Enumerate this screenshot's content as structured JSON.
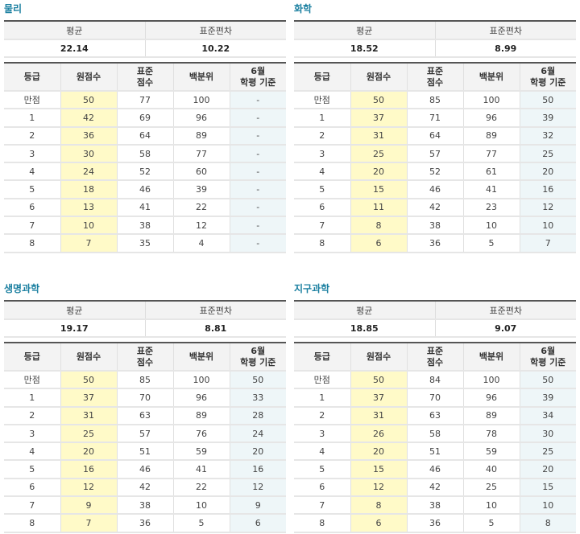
{
  "labels": {
    "mean": "평균",
    "sd": "표준편차",
    "grade": "등급",
    "raw": "원점수",
    "std_l1": "표준",
    "std_l2": "점수",
    "pct": "백분위",
    "june_l1": "6월",
    "june_l2": "학평 기준"
  },
  "colors": {
    "title": "#1a7fa0",
    "raw_bg": "#fffac8",
    "june_bg": "#eef6f8"
  },
  "panels": [
    {
      "title": "물리",
      "mean": "22.14",
      "sd": "10.22",
      "rows": [
        [
          "만점",
          "50",
          "77",
          "100",
          "-"
        ],
        [
          "1",
          "42",
          "69",
          "96",
          "-"
        ],
        [
          "2",
          "36",
          "64",
          "89",
          "-"
        ],
        [
          "3",
          "30",
          "58",
          "77",
          "-"
        ],
        [
          "4",
          "24",
          "52",
          "60",
          "-"
        ],
        [
          "5",
          "18",
          "46",
          "39",
          "-"
        ],
        [
          "6",
          "13",
          "41",
          "22",
          "-"
        ],
        [
          "7",
          "10",
          "38",
          "12",
          "-"
        ],
        [
          "8",
          "7",
          "35",
          "4",
          "-"
        ]
      ]
    },
    {
      "title": "화학",
      "mean": "18.52",
      "sd": "8.99",
      "rows": [
        [
          "만점",
          "50",
          "85",
          "100",
          "50"
        ],
        [
          "1",
          "37",
          "71",
          "96",
          "39"
        ],
        [
          "2",
          "31",
          "64",
          "89",
          "32"
        ],
        [
          "3",
          "25",
          "57",
          "77",
          "25"
        ],
        [
          "4",
          "20",
          "52",
          "61",
          "20"
        ],
        [
          "5",
          "15",
          "46",
          "41",
          "16"
        ],
        [
          "6",
          "11",
          "42",
          "23",
          "12"
        ],
        [
          "7",
          "8",
          "38",
          "10",
          "10"
        ],
        [
          "8",
          "6",
          "36",
          "5",
          "7"
        ]
      ]
    },
    {
      "title": "생명과학",
      "mean": "19.17",
      "sd": "8.81",
      "rows": [
        [
          "만점",
          "50",
          "85",
          "100",
          "50"
        ],
        [
          "1",
          "37",
          "70",
          "96",
          "33"
        ],
        [
          "2",
          "31",
          "63",
          "89",
          "28"
        ],
        [
          "3",
          "25",
          "57",
          "76",
          "24"
        ],
        [
          "4",
          "20",
          "51",
          "59",
          "20"
        ],
        [
          "5",
          "16",
          "46",
          "41",
          "16"
        ],
        [
          "6",
          "12",
          "42",
          "22",
          "12"
        ],
        [
          "7",
          "9",
          "38",
          "10",
          "9"
        ],
        [
          "8",
          "7",
          "36",
          "5",
          "6"
        ]
      ]
    },
    {
      "title": "지구과학",
      "mean": "18.85",
      "sd": "9.07",
      "rows": [
        [
          "만점",
          "50",
          "84",
          "100",
          "50"
        ],
        [
          "1",
          "37",
          "70",
          "96",
          "39"
        ],
        [
          "2",
          "31",
          "63",
          "89",
          "34"
        ],
        [
          "3",
          "26",
          "58",
          "78",
          "30"
        ],
        [
          "4",
          "20",
          "51",
          "59",
          "25"
        ],
        [
          "5",
          "15",
          "46",
          "40",
          "20"
        ],
        [
          "6",
          "12",
          "42",
          "25",
          "15"
        ],
        [
          "7",
          "8",
          "38",
          "10",
          "10"
        ],
        [
          "8",
          "6",
          "36",
          "5",
          "8"
        ]
      ]
    }
  ]
}
